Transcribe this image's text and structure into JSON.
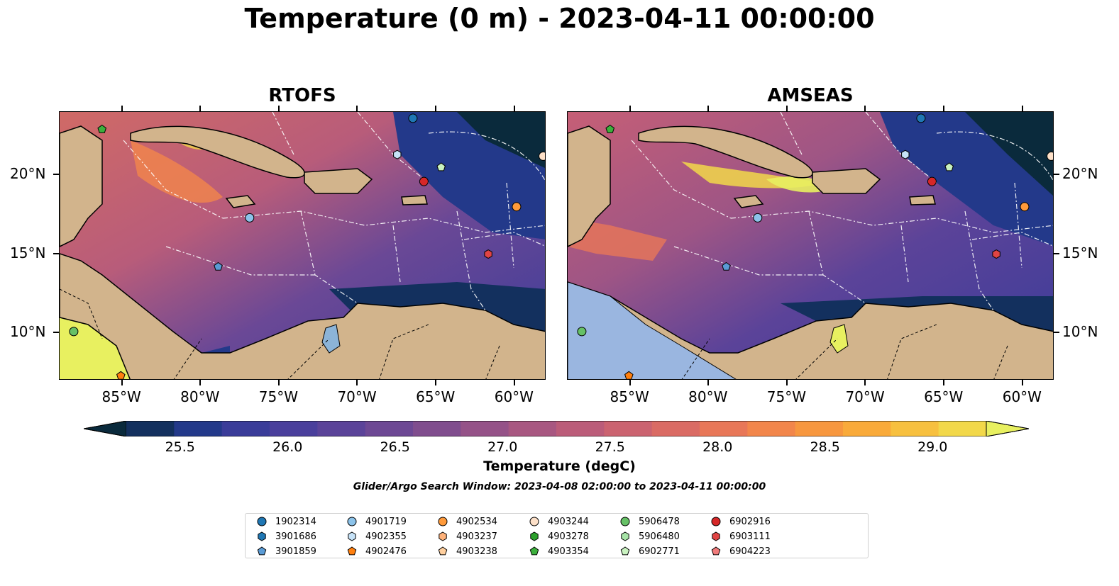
{
  "title": "Temperature (0 m) - 2023-04-11 00:00:00",
  "panels": [
    {
      "title": "RTOFS"
    },
    {
      "title": "AMSEAS"
    }
  ],
  "axes": {
    "lon_ticks": [
      "85°W",
      "80°W",
      "75°W",
      "70°W",
      "65°W",
      "60°W"
    ],
    "lat_ticks": [
      "20°N",
      "15°N",
      "10°N"
    ],
    "lon_range": [
      -89,
      -58
    ],
    "lat_range": [
      7,
      24
    ]
  },
  "colorbar": {
    "label": "Temperature (degC)",
    "ticks": [
      "25.5",
      "26.0",
      "26.5",
      "27.0",
      "27.5",
      "28.0",
      "28.5",
      "29.0"
    ],
    "range": [
      25.25,
      29.25
    ],
    "colors": [
      "#0a2a3c",
      "#13305e",
      "#23398a",
      "#3a3c99",
      "#4a3f9c",
      "#5b4399",
      "#6d4894",
      "#804d8e",
      "#955288",
      "#a85781",
      "#bb5c79",
      "#cb6370",
      "#da6b64",
      "#e87758",
      "#f2864b",
      "#f7973f",
      "#f9aa3a",
      "#f7c03f",
      "#f2d84a",
      "#e8f060"
    ],
    "extend": "both"
  },
  "search_window": "Glider/Argo Search Window: 2023-04-08 02:00:00 to 2023-04-11 00:00:00",
  "floats": [
    {
      "id": "1902314",
      "marker": "circle",
      "color": "#1f77b4"
    },
    {
      "id": "3901686",
      "marker": "hexagon",
      "color": "#1f77b4"
    },
    {
      "id": "3901859",
      "marker": "pentagon",
      "color": "#5a9bd5"
    },
    {
      "id": "4901719",
      "marker": "circle",
      "color": "#8cc3ea"
    },
    {
      "id": "4902355",
      "marker": "hexagon",
      "color": "#c6e2f7"
    },
    {
      "id": "4902476",
      "marker": "pentagon",
      "color": "#ff7f0e"
    },
    {
      "id": "4902534",
      "marker": "circle",
      "color": "#ff9a3a"
    },
    {
      "id": "4903237",
      "marker": "hexagon",
      "color": "#ffb27a"
    },
    {
      "id": "4903238",
      "marker": "pentagon",
      "color": "#ffcf9e"
    },
    {
      "id": "4903244",
      "marker": "circle",
      "color": "#fde0c8"
    },
    {
      "id": "4903278",
      "marker": "hexagon",
      "color": "#2ca02c"
    },
    {
      "id": "4903354",
      "marker": "pentagon",
      "color": "#3caf3c"
    },
    {
      "id": "5906478",
      "marker": "circle",
      "color": "#66c166"
    },
    {
      "id": "5906480",
      "marker": "hexagon",
      "color": "#a6e3a6"
    },
    {
      "id": "6902771",
      "marker": "pentagon",
      "color": "#c9f2c0"
    },
    {
      "id": "6902916",
      "marker": "circle",
      "color": "#d62728"
    },
    {
      "id": "6903111",
      "marker": "hexagon",
      "color": "#e04444"
    },
    {
      "id": "6904223",
      "marker": "pentagon",
      "color": "#f07a7a"
    }
  ],
  "map_points": [
    {
      "id": "4903354",
      "lon": -86.3,
      "lat": 22.9
    },
    {
      "id": "1902314",
      "lon": -66.5,
      "lat": 23.6
    },
    {
      "id": "4902355",
      "lon": -67.5,
      "lat": 21.3
    },
    {
      "id": "6902771",
      "lon": -64.7,
      "lat": 20.5
    },
    {
      "id": "6902916",
      "lon": -65.8,
      "lat": 19.6
    },
    {
      "id": "4903244",
      "lon": -58.2,
      "lat": 21.2
    },
    {
      "id": "4902534",
      "lon": -59.9,
      "lat": 18.0
    },
    {
      "id": "6903111",
      "lon": -61.7,
      "lat": 15.0
    },
    {
      "id": "4901719",
      "lon": -76.9,
      "lat": 17.3
    },
    {
      "id": "3901859",
      "lon": -78.9,
      "lat": 14.2
    },
    {
      "id": "5906478",
      "lon": -88.1,
      "lat": 10.1
    },
    {
      "id": "4902476",
      "lon": -85.1,
      "lat": 7.3
    }
  ]
}
